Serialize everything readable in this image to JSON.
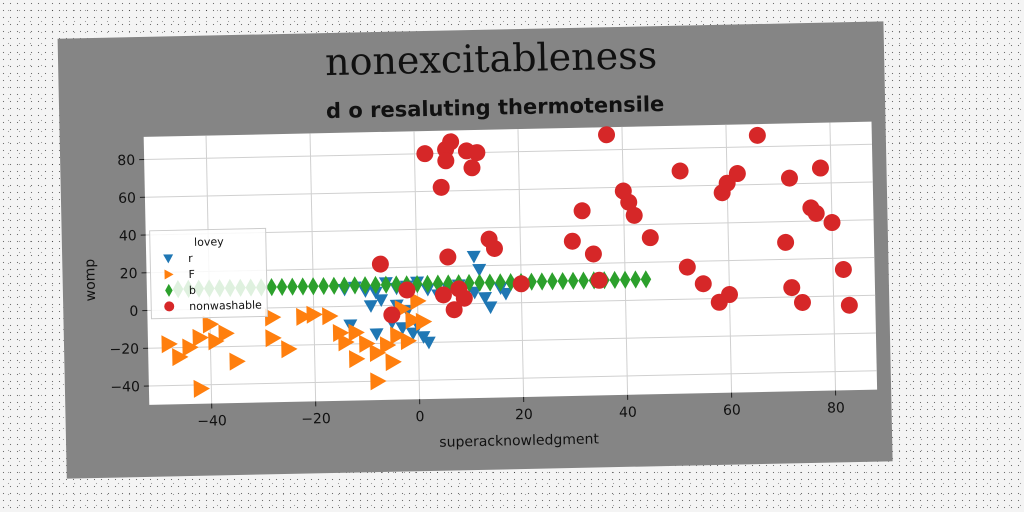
{
  "chart_data": {
    "type": "scatter",
    "title": "nonexcitableness",
    "subtitle": "d o resaluting thermotensile",
    "xlabel": "superacknowledgment",
    "ylabel": "womp",
    "xlim": [
      -52,
      88
    ],
    "ylim": [
      -50,
      92
    ],
    "xticks": [
      -40,
      -20,
      0,
      20,
      40,
      60,
      80
    ],
    "yticks": [
      -40,
      -20,
      0,
      20,
      40,
      60,
      80
    ],
    "grid": true,
    "legend": {
      "title": "lovey",
      "position": "center-left"
    },
    "series": [
      {
        "name": "r",
        "marker": "triangle-down",
        "color": "#1f77b4",
        "points": [
          [
            -14,
            9
          ],
          [
            -12,
            10
          ],
          [
            -10,
            8
          ],
          [
            -8,
            7
          ],
          [
            -6,
            12
          ],
          [
            -4,
            9
          ],
          [
            -2,
            10
          ],
          [
            0,
            12
          ],
          [
            2,
            8
          ],
          [
            -9,
            0
          ],
          [
            -7,
            3
          ],
          [
            -4,
            0
          ],
          [
            -2,
            -3
          ],
          [
            -5,
            -9
          ],
          [
            -3,
            -12
          ],
          [
            0,
            -11
          ],
          [
            -1,
            -15
          ],
          [
            1,
            -17
          ],
          [
            -8,
            -15
          ],
          [
            -13,
            -10
          ],
          [
            2,
            -20
          ],
          [
            4,
            5
          ],
          [
            6,
            8
          ],
          [
            8,
            10
          ],
          [
            9,
            4
          ],
          [
            11,
            6
          ],
          [
            13,
            3
          ],
          [
            12,
            18
          ],
          [
            11,
            25
          ],
          [
            14,
            -2
          ],
          [
            16,
            8
          ],
          [
            17,
            5
          ]
        ]
      },
      {
        "name": "F",
        "marker": "triangle-right",
        "color": "#ff7f0e",
        "points": [
          [
            -48,
            -18
          ],
          [
            -46,
            -25
          ],
          [
            -44,
            -20
          ],
          [
            -42,
            -15
          ],
          [
            -40,
            -8
          ],
          [
            -39,
            -17
          ],
          [
            -37,
            -13
          ],
          [
            -35,
            -28
          ],
          [
            -42,
            -42
          ],
          [
            -28,
            -16
          ],
          [
            -22,
            -5
          ],
          [
            -20,
            -4
          ],
          [
            -17,
            -5
          ],
          [
            -15,
            -14
          ],
          [
            -14,
            -19
          ],
          [
            -12,
            -14
          ],
          [
            -10,
            -20
          ],
          [
            -8,
            -25
          ],
          [
            -6,
            -21
          ],
          [
            -4,
            -16
          ],
          [
            -2,
            -19
          ],
          [
            -1,
            -8
          ],
          [
            1,
            -9
          ],
          [
            -5,
            -30
          ],
          [
            -8,
            -40
          ],
          [
            -12,
            -28
          ],
          [
            -28,
            -5
          ],
          [
            -25,
            -22
          ],
          [
            -3,
            -2
          ],
          [
            0,
            2
          ]
        ]
      },
      {
        "name": "b",
        "marker": "diamond",
        "color": "#2ca02c",
        "points": [
          [
            -46,
            11
          ],
          [
            -44,
            11
          ],
          [
            -42,
            11
          ],
          [
            -40,
            11
          ],
          [
            -38,
            11
          ],
          [
            -36,
            11
          ],
          [
            -34,
            11
          ],
          [
            -32,
            11
          ],
          [
            -30,
            11
          ],
          [
            -28,
            11
          ],
          [
            -26,
            11
          ],
          [
            -24,
            11
          ],
          [
            -22,
            11
          ],
          [
            -20,
            11
          ],
          [
            -18,
            11
          ],
          [
            -16,
            11
          ],
          [
            -14,
            11
          ],
          [
            -12,
            11
          ],
          [
            -10,
            11
          ],
          [
            -8,
            11
          ],
          [
            -6,
            11
          ],
          [
            -4,
            11
          ],
          [
            -2,
            11
          ],
          [
            0,
            11
          ],
          [
            2,
            11
          ],
          [
            4,
            11
          ],
          [
            6,
            11
          ],
          [
            8,
            11
          ],
          [
            10,
            11
          ],
          [
            12,
            11
          ],
          [
            14,
            11
          ],
          [
            16,
            11
          ],
          [
            18,
            11
          ],
          [
            20,
            11
          ],
          [
            22,
            11
          ],
          [
            24,
            11
          ],
          [
            26,
            11
          ],
          [
            28,
            11
          ],
          [
            30,
            11
          ],
          [
            32,
            11
          ],
          [
            34,
            11
          ],
          [
            36,
            11
          ],
          [
            38,
            11
          ],
          [
            40,
            11
          ],
          [
            42,
            11
          ],
          [
            44,
            11
          ]
        ]
      },
      {
        "name": "nonwashable",
        "marker": "circle",
        "color": "#d62728",
        "points": [
          [
            2,
            80
          ],
          [
            6,
            82
          ],
          [
            7,
            86
          ],
          [
            10,
            81
          ],
          [
            12,
            80
          ],
          [
            6,
            76
          ],
          [
            11,
            72
          ],
          [
            5,
            62
          ],
          [
            6,
            25
          ],
          [
            14,
            34
          ],
          [
            15,
            29
          ],
          [
            5,
            5
          ],
          [
            7,
            -3
          ],
          [
            8,
            8
          ],
          [
            9,
            3
          ],
          [
            -7,
            22
          ],
          [
            -2,
            8
          ],
          [
            -5,
            -5
          ],
          [
            20,
            10
          ],
          [
            30,
            32
          ],
          [
            32,
            48
          ],
          [
            34,
            25
          ],
          [
            35,
            11
          ],
          [
            37,
            88
          ],
          [
            40,
            58
          ],
          [
            41,
            52
          ],
          [
            42,
            45
          ],
          [
            45,
            33
          ],
          [
            51,
            68
          ],
          [
            52,
            17
          ],
          [
            55,
            8
          ],
          [
            58,
            -2
          ],
          [
            60,
            2
          ],
          [
            59,
            56
          ],
          [
            60,
            61
          ],
          [
            62,
            66
          ],
          [
            66,
            86
          ],
          [
            71,
            29
          ],
          [
            72,
            63
          ],
          [
            72,
            5
          ],
          [
            74,
            -3
          ],
          [
            76,
            47
          ],
          [
            77,
            44
          ],
          [
            78,
            68
          ],
          [
            80,
            39
          ],
          [
            82,
            14
          ],
          [
            83,
            -5
          ]
        ]
      }
    ]
  }
}
